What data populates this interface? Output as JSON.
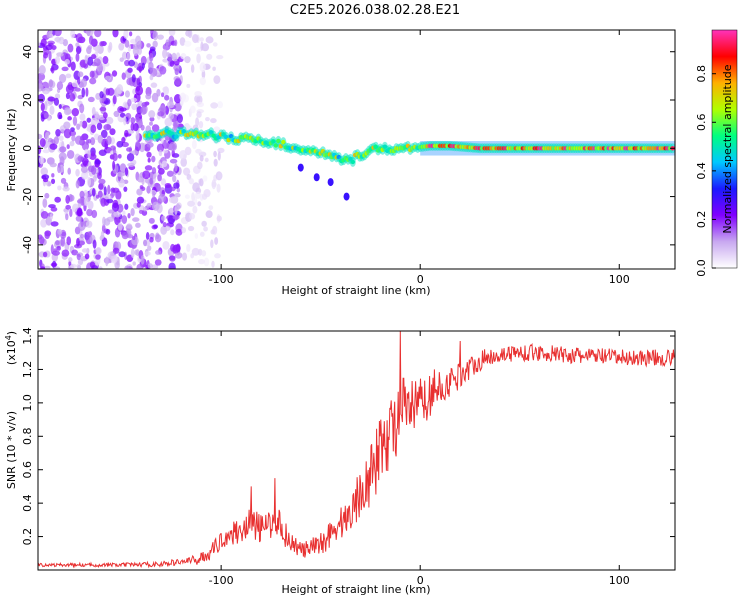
{
  "chart_data": [
    {
      "type": "heatmap",
      "title": "C2E5.2026.038.02.28.E21",
      "xlabel": "Height of straight line (km)",
      "ylabel": "Frequency (Hz)",
      "xlim": [
        -192,
        128
      ],
      "ylim": [
        -50,
        49
      ],
      "xticks": [
        -100,
        0,
        100
      ],
      "yticks": [
        -40,
        -20,
        0,
        20,
        40
      ],
      "colorbar": {
        "label": "Normalized spectral amplitude",
        "range": [
          0,
          0.98
        ],
        "ticks": [
          "0.0",
          "0.2",
          "0.4",
          "0.6",
          "0.8"
        ],
        "colors": [
          "#ffffff",
          "#c8a8f0",
          "#8000ff",
          "#1a1aff",
          "#00c8ff",
          "#00ff80",
          "#b0ff00",
          "#ffb000",
          "#ff0000",
          "#ff33bb"
        ]
      },
      "regions": [
        {
          "name": "broadband noise",
          "x": [
            -192,
            -120
          ],
          "frequency": [
            -50,
            49
          ],
          "amplitude": 0.15
        },
        {
          "name": "sparse noise",
          "x": [
            -120,
            -100
          ],
          "frequency": [
            -50,
            49
          ],
          "amplitude": 0.05
        },
        {
          "name": "signal track",
          "points": [
            [
              -138,
              6
            ],
            [
              -120,
              6
            ],
            [
              -110,
              6
            ],
            [
              -100,
              5
            ],
            [
              -90,
              4
            ],
            [
              -80,
              3
            ],
            [
              -70,
              2
            ],
            [
              -60,
              -1
            ],
            [
              -50,
              -2
            ],
            [
              -42,
              -4
            ],
            [
              -35,
              -5
            ],
            [
              -28,
              -2
            ],
            [
              -20,
              0
            ],
            [
              -12,
              0
            ],
            [
              -5,
              0
            ],
            [
              5,
              1
            ],
            [
              15,
              1
            ],
            [
              30,
              0
            ],
            [
              60,
              0
            ],
            [
              90,
              0
            ],
            [
              128,
              0
            ]
          ],
          "amplitude_range": [
            0.6,
            0.98
          ]
        },
        {
          "name": "diagonal trail",
          "points": [
            [
              -60,
              -8
            ],
            [
              -52,
              -12
            ],
            [
              -45,
              -14
            ],
            [
              -37,
              -20
            ]
          ],
          "amplitude": 0.3
        }
      ]
    },
    {
      "type": "line",
      "xlabel": "Height of straight line (km)",
      "ylabel": "SNR (10 * v/v)",
      "y_multiplier": "(x10",
      "y_multiplier_exp": "4",
      "y_multiplier_close": ")",
      "xlim": [
        -192,
        128
      ],
      "ylim": [
        0,
        1.43
      ],
      "xticks": [
        -100,
        0,
        100
      ],
      "yticks": [
        0.2,
        0.4,
        0.6,
        0.8,
        1.0,
        1.2,
        1.4
      ],
      "ytick_labels": [
        "0.2",
        "0.4",
        "0.6",
        "0.8",
        "1.0",
        "1.2",
        "1.4"
      ],
      "series": [
        {
          "name": "SNR",
          "color": "#e83030",
          "x": [
            -192,
            -170,
            -150,
            -130,
            -120,
            -112,
            -106,
            -102,
            -98,
            -94,
            -90,
            -86,
            -82,
            -78,
            -75,
            -72,
            -68,
            -64,
            -60,
            -56,
            -52,
            -48,
            -44,
            -40,
            -36,
            -32,
            -28,
            -26,
            -24,
            -22,
            -20,
            -18,
            -16,
            -14,
            -12,
            -10,
            -8,
            -6,
            -4,
            -2,
            0,
            4,
            8,
            12,
            16,
            20,
            24,
            28,
            32,
            36,
            40,
            50,
            60,
            70,
            80,
            90,
            100,
            110,
            120,
            128
          ],
          "values": [
            0.03,
            0.03,
            0.03,
            0.035,
            0.05,
            0.06,
            0.1,
            0.15,
            0.2,
            0.22,
            0.24,
            0.28,
            0.26,
            0.24,
            0.28,
            0.3,
            0.22,
            0.16,
            0.12,
            0.12,
            0.14,
            0.18,
            0.24,
            0.28,
            0.32,
            0.42,
            0.5,
            0.55,
            0.58,
            0.65,
            0.72,
            0.8,
            0.8,
            0.84,
            0.9,
            0.95,
            0.95,
            0.95,
            0.96,
            0.98,
            1.0,
            1.03,
            1.06,
            1.1,
            1.13,
            1.17,
            1.2,
            1.24,
            1.26,
            1.28,
            1.29,
            1.3,
            1.3,
            1.29,
            1.28,
            1.28,
            1.27,
            1.27,
            1.27,
            1.27
          ],
          "noise": [
            0.01,
            0.01,
            0.012,
            0.015,
            0.02,
            0.03,
            0.04,
            0.05,
            0.06,
            0.07,
            0.08,
            0.09,
            0.09,
            0.09,
            0.09,
            0.09,
            0.08,
            0.06,
            0.05,
            0.06,
            0.07,
            0.08,
            0.09,
            0.1,
            0.12,
            0.14,
            0.16,
            0.18,
            0.2,
            0.2,
            0.2,
            0.22,
            0.22,
            0.22,
            0.22,
            0.2,
            0.2,
            0.2,
            0.18,
            0.16,
            0.15,
            0.13,
            0.12,
            0.1,
            0.09,
            0.08,
            0.07,
            0.06,
            0.06,
            0.05,
            0.05,
            0.05,
            0.05,
            0.05,
            0.05,
            0.05,
            0.05,
            0.05,
            0.05,
            0.05
          ],
          "spikes": [
            [
              -10,
              1.43
            ],
            [
              20,
              1.37
            ],
            [
              7,
              1.2
            ],
            [
              -20,
              0.8
            ],
            [
              -73,
              0.55
            ],
            [
              -85,
              0.5
            ],
            [
              -27,
              0.65
            ]
          ]
        }
      ]
    }
  ]
}
